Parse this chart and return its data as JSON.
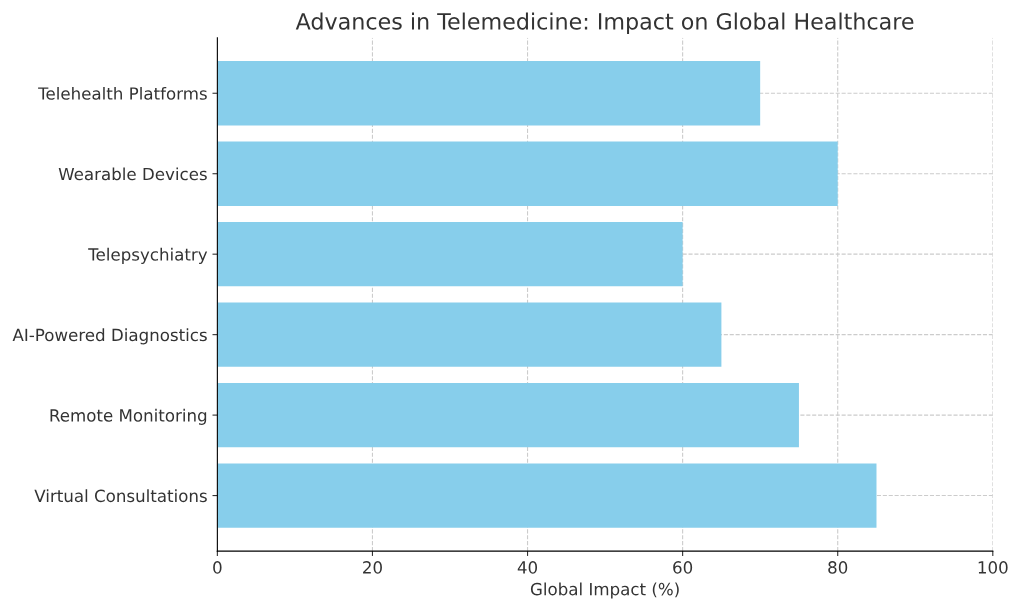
{
  "chart_data": {
    "type": "bar",
    "orientation": "horizontal",
    "title": "Advances in Telemedicine: Impact on Global Healthcare",
    "xlabel": "Global Impact (%)",
    "categories": [
      "Telehealth Platforms",
      "Wearable Devices",
      "Telepsychiatry",
      "AI-Powered Diagnostics",
      "Remote Monitoring",
      "Virtual Consultations"
    ],
    "values": [
      70,
      80,
      60,
      65,
      75,
      85
    ],
    "color": "#87ceeb",
    "xlim": [
      0,
      100
    ],
    "xticks": [
      0,
      20,
      40,
      60,
      80,
      100
    ],
    "grid": true,
    "line_style": "dashed"
  }
}
